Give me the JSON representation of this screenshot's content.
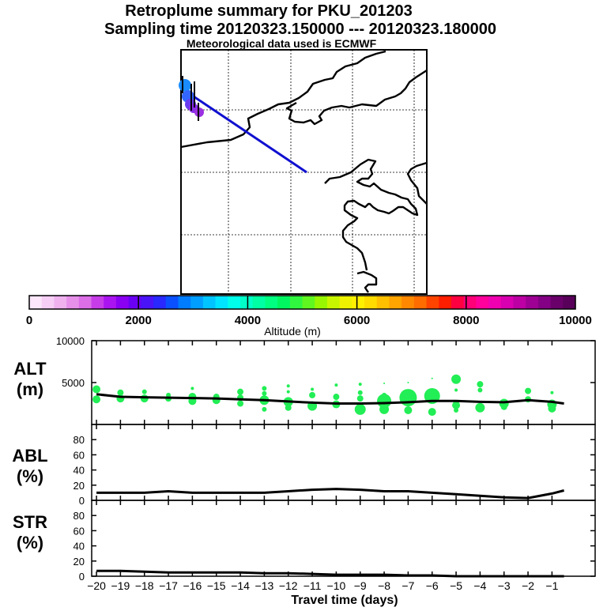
{
  "header": {
    "title": "Retroplume summary for PKU_201203",
    "sampling": "Sampling time   20120323.150000 --- 20120323.180000",
    "met": "Meteorological data used is ECMWF"
  },
  "colors": {
    "trajectory": "#1010d0",
    "altitude_dots": "#22ee55",
    "line": "#000000",
    "frame": "#000000"
  },
  "colorbar": {
    "label": "Altitude (m)",
    "ticks": [
      "0",
      "2000",
      "4000",
      "6000",
      "8000",
      "10000"
    ],
    "colors": [
      "#fbe6fb",
      "#f6cef6",
      "#efb2ef",
      "#e690ea",
      "#dc6ee8",
      "#c63ce8",
      "#aa14f0",
      "#8a00f2",
      "#6a00f4",
      "#4a14f8",
      "#2828ff",
      "#0a50ff",
      "#007cff",
      "#009eff",
      "#00c4ff",
      "#00e4ff",
      "#00ffea",
      "#00ffc8",
      "#00ffa4",
      "#00ff80",
      "#00f660",
      "#30f640",
      "#60f620",
      "#98f600",
      "#c8f600",
      "#eef200",
      "#fff000",
      "#ffdc00",
      "#ffc000",
      "#ffa400",
      "#ff8800",
      "#ff6c00",
      "#ff4400",
      "#ff1e00",
      "#ff0040",
      "#ff0078",
      "#ff009c",
      "#f000b0",
      "#d800b0",
      "#bc00a4",
      "#9e0094",
      "#840084",
      "#6a006a",
      "#58005a"
    ]
  },
  "chart_data": [
    {
      "type": "line",
      "title": "ALT",
      "unit": "(m)",
      "x": [
        -20,
        -19,
        -18,
        -17,
        -16,
        -15,
        -14,
        -13,
        -12,
        -11,
        -10,
        -9,
        -8,
        -7,
        -6,
        -5,
        -4,
        -3,
        -2,
        -1,
        -0.5
      ],
      "y": [
        3600,
        3300,
        3250,
        3200,
        3150,
        3100,
        3000,
        2900,
        2750,
        2600,
        2500,
        2500,
        2550,
        2650,
        2800,
        2800,
        2700,
        2650,
        2900,
        2700,
        2500
      ],
      "yticks": [
        "10000",
        "5000"
      ],
      "ylim": [
        0,
        10000
      ],
      "xlim": [
        -20.2,
        0.8
      ],
      "scatter": [
        {
          "x": -20,
          "y": 4200,
          "size": 5
        },
        {
          "x": -20,
          "y": 3000,
          "size": 5
        },
        {
          "x": -19,
          "y": 3800,
          "size": 4
        },
        {
          "x": -19,
          "y": 3100,
          "size": 5
        },
        {
          "x": -18,
          "y": 3900,
          "size": 3
        },
        {
          "x": -18,
          "y": 3100,
          "size": 5
        },
        {
          "x": -17,
          "y": 3500,
          "size": 3
        },
        {
          "x": -17,
          "y": 3100,
          "size": 4
        },
        {
          "x": -16,
          "y": 4300,
          "size": 2
        },
        {
          "x": -16,
          "y": 3300,
          "size": 5
        },
        {
          "x": -16,
          "y": 2800,
          "size": 5
        },
        {
          "x": -15,
          "y": 3300,
          "size": 4
        },
        {
          "x": -15,
          "y": 2900,
          "size": 5
        },
        {
          "x": -14,
          "y": 3900,
          "size": 4
        },
        {
          "x": -14,
          "y": 3200,
          "size": 4
        },
        {
          "x": -14,
          "y": 2500,
          "size": 4
        },
        {
          "x": -13,
          "y": 4300,
          "size": 3
        },
        {
          "x": -13,
          "y": 3700,
          "size": 3
        },
        {
          "x": -13,
          "y": 2900,
          "size": 6
        },
        {
          "x": -13,
          "y": 1800,
          "size": 3
        },
        {
          "x": -12,
          "y": 4600,
          "size": 2
        },
        {
          "x": -12,
          "y": 3900,
          "size": 2
        },
        {
          "x": -12,
          "y": 2700,
          "size": 6
        },
        {
          "x": -12,
          "y": 2000,
          "size": 4
        },
        {
          "x": -11,
          "y": 4200,
          "size": 2
        },
        {
          "x": -11,
          "y": 3500,
          "size": 4
        },
        {
          "x": -11,
          "y": 2200,
          "size": 6
        },
        {
          "x": -10,
          "y": 4700,
          "size": 2
        },
        {
          "x": -10,
          "y": 3300,
          "size": 4
        },
        {
          "x": -10,
          "y": 2400,
          "size": 5
        },
        {
          "x": -9,
          "y": 4800,
          "size": 2
        },
        {
          "x": -9,
          "y": 3800,
          "size": 3
        },
        {
          "x": -9,
          "y": 3100,
          "size": 4
        },
        {
          "x": -9,
          "y": 1800,
          "size": 7
        },
        {
          "x": -8,
          "y": 4900,
          "size": 1
        },
        {
          "x": -8,
          "y": 3500,
          "size": 3
        },
        {
          "x": -8,
          "y": 2800,
          "size": 9
        },
        {
          "x": -8,
          "y": 1800,
          "size": 6
        },
        {
          "x": -7,
          "y": 5000,
          "size": 1
        },
        {
          "x": -7,
          "y": 3200,
          "size": 11
        },
        {
          "x": -7,
          "y": 1700,
          "size": 5
        },
        {
          "x": -6,
          "y": 5500,
          "size": 1
        },
        {
          "x": -6,
          "y": 3400,
          "size": 10
        },
        {
          "x": -6,
          "y": 1500,
          "size": 5
        },
        {
          "x": -5,
          "y": 5400,
          "size": 6
        },
        {
          "x": -5,
          "y": 4100,
          "size": 2
        },
        {
          "x": -5,
          "y": 2300,
          "size": 5
        },
        {
          "x": -5,
          "y": 1700,
          "size": 3
        },
        {
          "x": -4,
          "y": 4800,
          "size": 4
        },
        {
          "x": -4,
          "y": 4100,
          "size": 3
        },
        {
          "x": -4,
          "y": 2000,
          "size": 6
        },
        {
          "x": -3,
          "y": 2500,
          "size": 6
        },
        {
          "x": -3,
          "y": 2100,
          "size": 4
        },
        {
          "x": -2,
          "y": 4000,
          "size": 4
        },
        {
          "x": -2,
          "y": 3000,
          "size": 4
        },
        {
          "x": -1,
          "y": 3800,
          "size": 2
        },
        {
          "x": -1,
          "y": 2400,
          "size": 6
        },
        {
          "x": -1,
          "y": 1900,
          "size": 5
        }
      ]
    },
    {
      "type": "line",
      "title": "ABL",
      "unit": "(%)",
      "x": [
        -20,
        -18,
        -17,
        -16,
        -15,
        -14,
        -13,
        -12,
        -11,
        -10,
        -9,
        -8,
        -7,
        -6,
        -5,
        -4,
        -3,
        -2,
        -1,
        -0.5
      ],
      "y": [
        10,
        10,
        12,
        10,
        10,
        10,
        10,
        12,
        14,
        15,
        14,
        12,
        12,
        10,
        8,
        6,
        4,
        3,
        9,
        13
      ],
      "yticks": [
        "80",
        "60",
        "40",
        "20",
        "0"
      ],
      "ylim": [
        0,
        100
      ],
      "xlim": [
        -20.2,
        0.8
      ]
    },
    {
      "type": "line",
      "title": "STR",
      "unit": "(%)",
      "x": [
        -20,
        -19,
        -18,
        -17,
        -16,
        -15,
        -14,
        -13,
        -12,
        -11,
        -10,
        -9,
        -8,
        -7,
        -6,
        -5,
        -4,
        -3,
        -2,
        -1,
        -0.5
      ],
      "y": [
        7,
        7,
        6,
        5,
        5,
        5,
        5,
        4,
        4,
        3,
        2,
        2,
        2,
        1,
        1,
        0,
        0,
        0,
        0,
        0,
        0
      ],
      "yticks": [
        "80",
        "60",
        "40",
        "20",
        "0"
      ],
      "ylim": [
        0,
        100
      ],
      "xlim": [
        -20.2,
        0.8
      ]
    }
  ],
  "xaxis": {
    "label": "Travel time (days)",
    "ticks": [
      {
        "v": -20,
        "t": "−20"
      },
      {
        "v": -19,
        "t": "−19"
      },
      {
        "v": -18,
        "t": "−18"
      },
      {
        "v": -17,
        "t": "−17"
      },
      {
        "v": -16,
        "t": "−16"
      },
      {
        "v": -15,
        "t": "−15"
      },
      {
        "v": -14,
        "t": "−14"
      },
      {
        "v": -13,
        "t": "−13"
      },
      {
        "v": -12,
        "t": "−12"
      },
      {
        "v": -11,
        "t": "−11"
      },
      {
        "v": -10,
        "t": "−10"
      },
      {
        "v": -9,
        "t": "−9"
      },
      {
        "v": -8,
        "t": "−8"
      },
      {
        "v": -7,
        "t": "−7"
      },
      {
        "v": -6,
        "t": "−6"
      },
      {
        "v": -5,
        "t": "−5"
      },
      {
        "v": -4,
        "t": "−4"
      },
      {
        "v": -3,
        "t": "−3"
      },
      {
        "v": -2,
        "t": "−2"
      },
      {
        "v": -1,
        "t": "−1"
      }
    ]
  }
}
